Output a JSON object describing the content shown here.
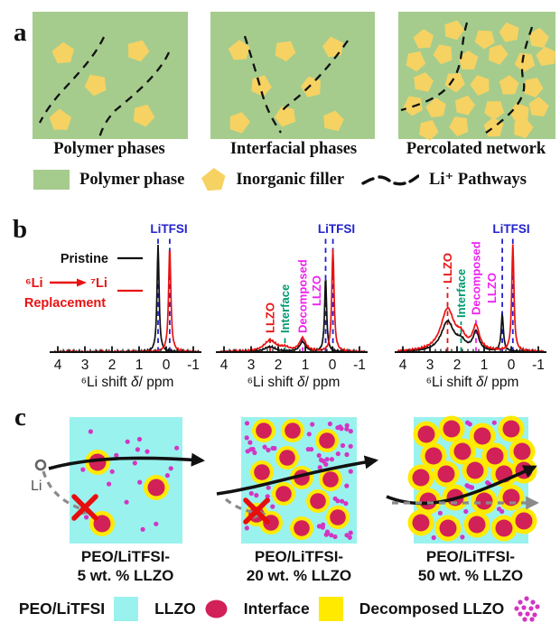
{
  "colors": {
    "polymer_green": "#a5cc8d",
    "filler_yellow": "#f6d263",
    "ink": "#111111",
    "nmr_blue": "#2323cc",
    "nmr_red": "#e81212",
    "nmr_green": "#009a70",
    "nmr_magenta": "#ee22ee",
    "peo_cyan": "#9af2ee",
    "llzo_crimson": "#d22158",
    "interface_yellow": "#ffea00",
    "decomposed_dot": "#d335c3",
    "pathway_gray": "#8a8a8a"
  },
  "panels": {
    "a": {
      "label": "a",
      "captions": [
        "Polymer phases",
        "Interfacial phases",
        "Percolated network"
      ],
      "legend": [
        {
          "swatch": "polymer-phase",
          "label": "Polymer phase"
        },
        {
          "swatch": "inorganic-filler",
          "label": "Inorganic filler"
        },
        {
          "swatch": "li-pathways",
          "label": "Li⁺ Pathways"
        }
      ]
    },
    "b": {
      "label": "b",
      "legend": {
        "pristine": "Pristine",
        "from": "⁶Li",
        "to": "⁷Li",
        "word": "Replacement"
      }
    },
    "c": {
      "label": "c",
      "li_label": "Li",
      "captions": [
        {
          "line1": "PEO/LiTFSI-",
          "line2": "5 wt. % LLZO"
        },
        {
          "line1": "PEO/LiTFSI-",
          "line2": "20 wt. % LLZO"
        },
        {
          "line1": "PEO/LiTFSI-",
          "line2": "50 wt. % LLZO"
        }
      ],
      "legend": [
        {
          "label": "PEO/LiTFSI",
          "swatch": "peo-litfsi"
        },
        {
          "label": "LLZO",
          "swatch": "llzo"
        },
        {
          "label": "Interface",
          "swatch": "interface"
        },
        {
          "label": "Decomposed LLZO",
          "swatch": "decomposed-llzo"
        }
      ]
    }
  },
  "chart_data": [
    {
      "type": "line",
      "xlabel": "⁶Li shift δ/ ppm",
      "x_range": [
        4,
        -1
      ],
      "x_ticks": [
        4,
        3,
        2,
        1,
        0,
        -1
      ],
      "top_label": "LiTFSI",
      "top_label_ppm": -0.1,
      "series": [
        {
          "name": "Pristine",
          "color": "#111111",
          "peaks": [
            {
              "center": 0.3,
              "height": 0.975,
              "width": 0.045
            }
          ]
        },
        {
          "name": "⁶Li → ⁷Li Replacement",
          "color": "#e81212",
          "peaks": [
            {
              "center": -0.13,
              "height": 0.95,
              "width": 0.05
            }
          ]
        }
      ],
      "markers": [
        {
          "ppm": 0.3,
          "color": "#2323cc",
          "line_len": 126
        },
        {
          "ppm": -0.13,
          "color": "#2323cc",
          "line_len": 126
        }
      ]
    },
    {
      "type": "line",
      "xlabel": "⁶Li shift δ/ ppm",
      "x_range": [
        4,
        -1
      ],
      "x_ticks": [
        4,
        3,
        2,
        1,
        0,
        -1
      ],
      "top_label": "LiTFSI",
      "top_label_ppm": -0.15,
      "series": [
        {
          "name": "Pristine",
          "color": "#111111",
          "peaks": [
            {
              "center": 2.3,
              "height": 0.045,
              "width": 0.25
            },
            {
              "center": 1.1,
              "height": 0.09,
              "width": 0.13
            },
            {
              "center": 0.25,
              "height": 0.67,
              "width": 0.045
            }
          ]
        },
        {
          "name": "⁶Li → ⁷Li Replacement",
          "color": "#e81212",
          "peaks": [
            {
              "center": 2.3,
              "height": 0.1,
              "width": 0.28
            },
            {
              "center": 1.75,
              "height": 0.03,
              "width": 0.2
            },
            {
              "center": 1.1,
              "height": 0.12,
              "width": 0.14
            },
            {
              "center": -0.02,
              "height": 0.93,
              "width": 0.05
            }
          ]
        }
      ],
      "markers": [
        {
          "ppm": 2.3,
          "color": "#e81212",
          "label": "LLZO",
          "label_base": 17,
          "line_len": 17
        },
        {
          "ppm": 1.75,
          "color": "#009a70",
          "label": "Interface",
          "label_base": 17,
          "line_len": 17
        },
        {
          "ppm": 1.1,
          "color": "#ee22ee",
          "label": "Decomposed",
          "label_base": 17,
          "line_len": 17
        },
        {
          "ppm": 0.58,
          "color": "#ee22ee",
          "label": "LLZO",
          "label_base": 47,
          "line_len": 0
        },
        {
          "ppm": 0.25,
          "color": "#2323cc",
          "line_len": 126
        },
        {
          "ppm": -0.02,
          "color": "#2323cc",
          "line_len": 126
        }
      ]
    },
    {
      "type": "line",
      "xlabel": "⁶Li shift δ/ ppm",
      "x_range": [
        4,
        -1
      ],
      "x_ticks": [
        4,
        3,
        2,
        1,
        0,
        -1
      ],
      "top_label": "LiTFSI",
      "top_label_ppm": 0.0,
      "series": [
        {
          "name": "Pristine",
          "color": "#111111",
          "peaks": [
            {
              "center": 2.35,
              "height": 0.27,
              "width": 0.28
            },
            {
              "center": 1.85,
              "height": 0.07,
              "width": 0.2
            },
            {
              "center": 1.3,
              "height": 0.17,
              "width": 0.13
            },
            {
              "center": 0.33,
              "height": 0.33,
              "width": 0.05
            }
          ]
        },
        {
          "name": "⁶Li → ⁷Li Replacement",
          "color": "#e81212",
          "peaks": [
            {
              "center": 2.35,
              "height": 0.38,
              "width": 0.3
            },
            {
              "center": 1.85,
              "height": 0.1,
              "width": 0.2
            },
            {
              "center": 1.3,
              "height": 0.21,
              "width": 0.15
            },
            {
              "center": -0.06,
              "height": 0.97,
              "width": 0.048
            }
          ]
        }
      ],
      "markers": [
        {
          "ppm": 2.35,
          "color": "#e81212",
          "label": "LLZO",
          "label_base": 72,
          "line_len": 72
        },
        {
          "ppm": 1.85,
          "color": "#009a70",
          "label": "Interface",
          "label_base": 34,
          "line_len": 34
        },
        {
          "ppm": 1.3,
          "color": "#ee22ee",
          "label": "Decomposed",
          "label_base": 37,
          "line_len": 37
        },
        {
          "ppm": 0.72,
          "color": "#ee22ee",
          "label": "LLZO",
          "label_base": 50,
          "line_len": 0
        },
        {
          "ppm": 0.33,
          "color": "#2323cc",
          "line_len": 126
        },
        {
          "ppm": -0.06,
          "color": "#2323cc",
          "line_len": 126
        }
      ]
    }
  ]
}
